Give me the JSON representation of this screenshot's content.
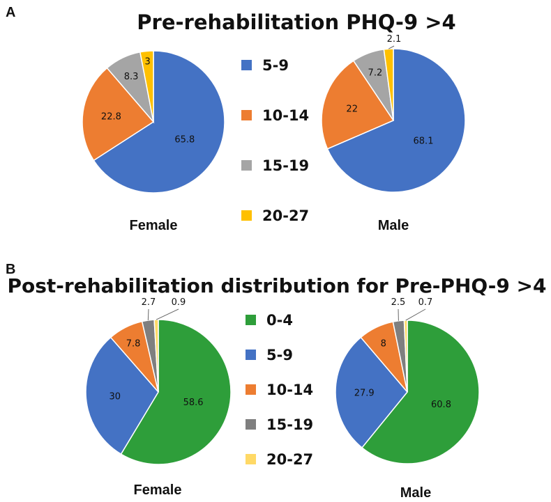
{
  "chart_data": [
    {
      "type": "pie",
      "panel": "A",
      "title": "Pre-rehabilitation PHQ-9 >4",
      "legend": [
        {
          "label": "5-9",
          "color": "#4472C4"
        },
        {
          "label": "10-14",
          "color": "#ED7D31"
        },
        {
          "label": "15-19",
          "color": "#A5A5A5"
        },
        {
          "label": "20-27",
          "color": "#FFC000"
        }
      ],
      "pies": [
        {
          "label": "Female",
          "categories": [
            "5-9",
            "10-14",
            "15-19",
            "20-27"
          ],
          "values": [
            65.8,
            22.8,
            8.3,
            3
          ],
          "value_labels": [
            "65.8",
            "22.8",
            "8.3",
            "3"
          ]
        },
        {
          "label": "Male",
          "categories": [
            "5-9",
            "10-14",
            "15-19",
            "20-27"
          ],
          "values": [
            68.1,
            22,
            7.2,
            2.1
          ],
          "value_labels": [
            "68.1",
            "22",
            "7.2",
            "2.1"
          ]
        }
      ]
    },
    {
      "type": "pie",
      "panel": "B",
      "title": "Post-rehabilitation distribution for Pre-PHQ-9 >4",
      "legend": [
        {
          "label": "0-4",
          "color": "#2E9E3A"
        },
        {
          "label": "5-9",
          "color": "#4472C4"
        },
        {
          "label": "10-14",
          "color": "#ED7D31"
        },
        {
          "label": "15-19",
          "color": "#7F7F7F"
        },
        {
          "label": "20-27",
          "color": "#FFD966"
        }
      ],
      "pies": [
        {
          "label": "Female",
          "categories": [
            "0-4",
            "5-9",
            "10-14",
            "15-19",
            "20-27"
          ],
          "values": [
            58.6,
            30,
            7.8,
            2.7,
            0.9
          ],
          "value_labels": [
            "58.6",
            "30",
            "7.8",
            "2.7",
            "0.9"
          ]
        },
        {
          "label": "Male",
          "categories": [
            "0-4",
            "5-9",
            "10-14",
            "15-19",
            "20-27"
          ],
          "values": [
            60.8,
            27.9,
            8,
            2.5,
            0.7
          ],
          "value_labels": [
            "60.8",
            "27.9",
            "8",
            "2.5",
            "0.7"
          ]
        }
      ]
    }
  ]
}
